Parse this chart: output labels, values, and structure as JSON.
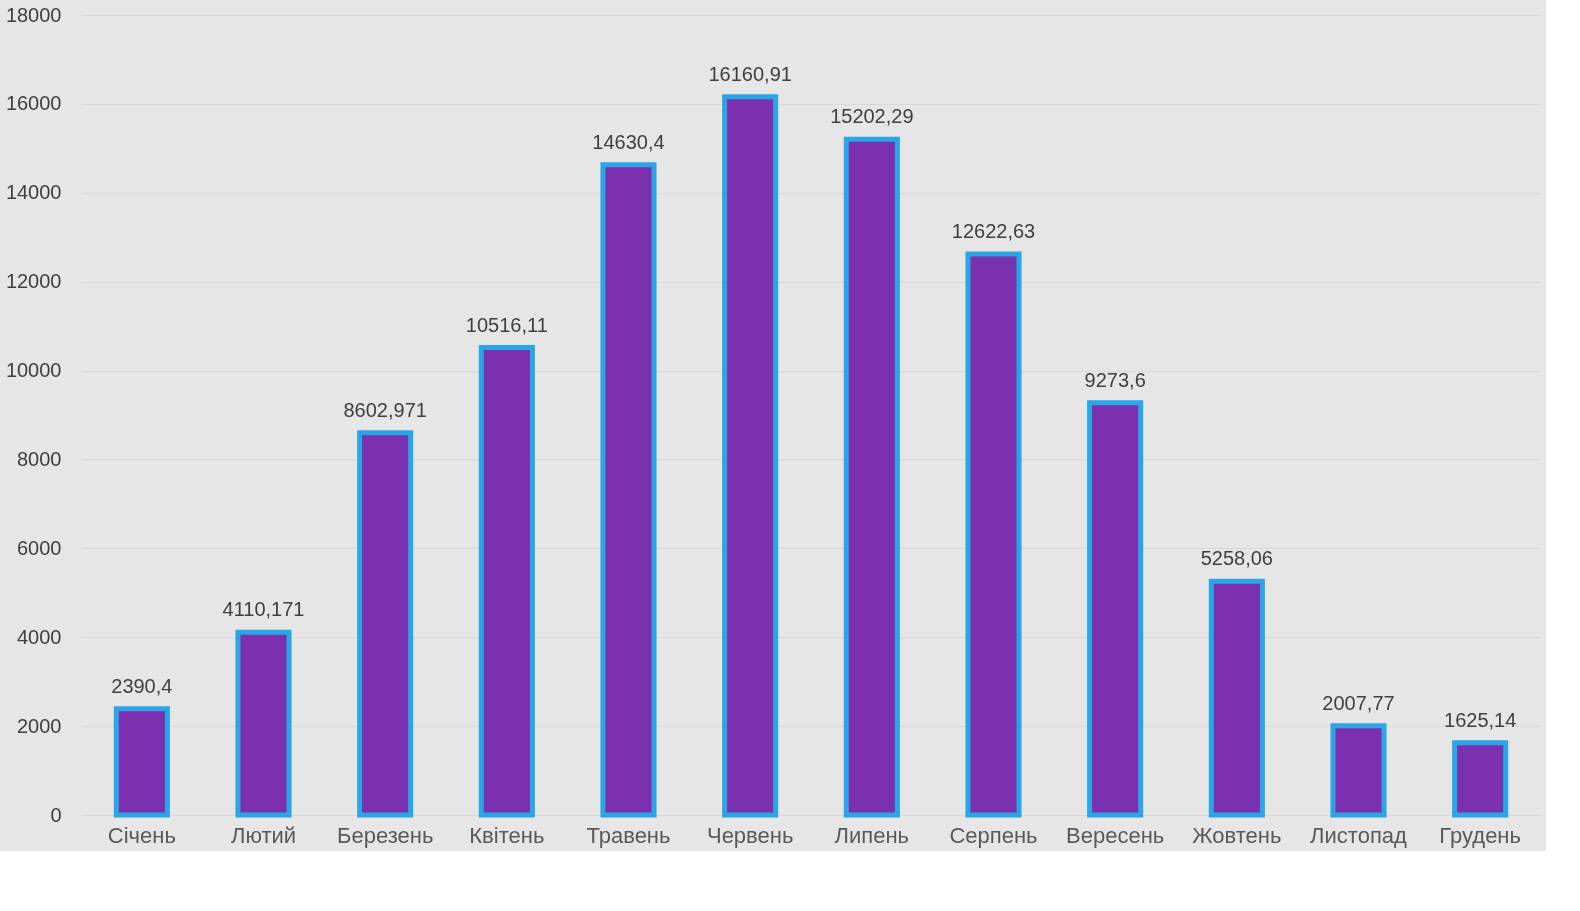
{
  "chart_data": {
    "type": "bar",
    "categories": [
      "Січень",
      "Лютий",
      "Березень",
      "Квітень",
      "Травень",
      "Червень",
      "Липень",
      "Серпень",
      "Вересень",
      "Жовтень",
      "Листопад",
      "Грудень"
    ],
    "values": [
      2390.4,
      4110.171,
      8602.971,
      10516.11,
      14630.4,
      16160.91,
      15202.29,
      12622.63,
      9273.6,
      5258.06,
      2007.77,
      1625.14
    ],
    "value_labels": [
      "2390,4",
      "4110,171",
      "8602,971",
      "10516,11",
      "14630,4",
      "16160,91",
      "15202,29",
      "12622,63",
      "9273,6",
      "5258,06",
      "2007,77",
      "1625,14"
    ],
    "color": "#7b30af",
    "ylim": [
      0,
      18000
    ],
    "yticks": [
      0,
      2000,
      4000,
      6000,
      8000,
      10000,
      12000,
      14000,
      16000,
      18000
    ],
    "grid": "y"
  }
}
